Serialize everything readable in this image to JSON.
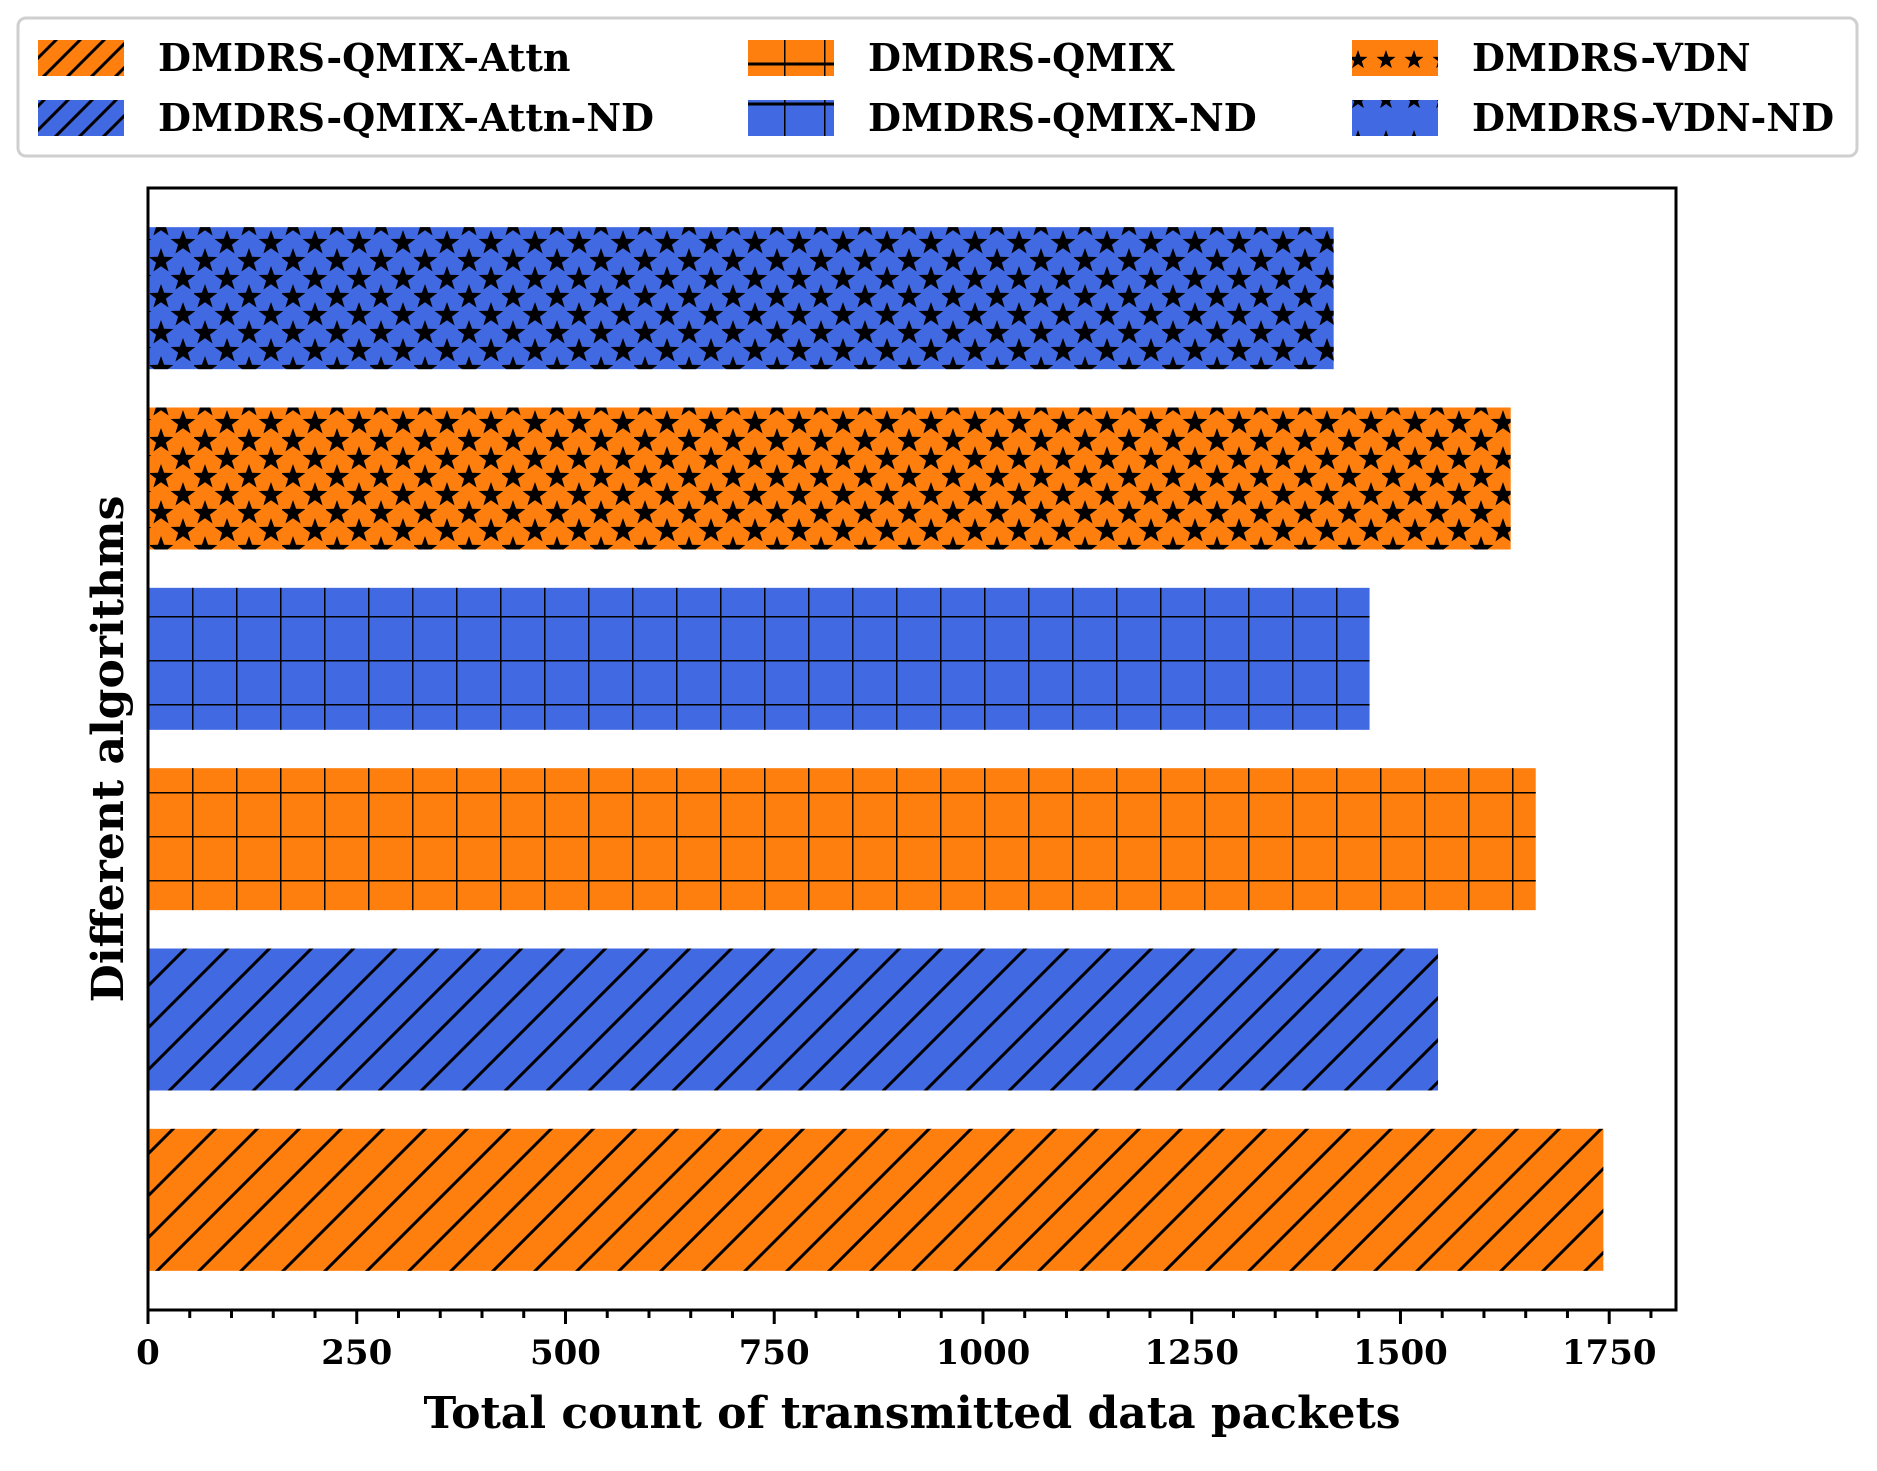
{
  "colors": {
    "orange": "#FF7F0E",
    "blue": "#4169E1",
    "hatch": "#000000"
  },
  "chart_data": {
    "type": "bar",
    "orientation": "horizontal",
    "title": "",
    "xlabel": "Total count of transmitted data packets",
    "ylabel": "Different algorithms",
    "xlim": [
      0,
      1830
    ],
    "xticks": [
      0,
      250,
      500,
      750,
      1000,
      1250,
      1500,
      1750
    ],
    "xtick_labels": [
      "0",
      "250",
      "500",
      "750",
      "1000",
      "1250",
      "1500",
      "1750"
    ],
    "minor_tick_step": 50,
    "grid": false,
    "legend_position": "top",
    "series": [
      {
        "name": "DMDRS-QMIX-Attn",
        "value": 1743,
        "color": "#FF7F0E",
        "hatch": "diagonal"
      },
      {
        "name": "DMDRS-QMIX-Attn-ND",
        "value": 1545,
        "color": "#4169E1",
        "hatch": "diagonal"
      },
      {
        "name": "DMDRS-QMIX",
        "value": 1662,
        "color": "#FF7F0E",
        "hatch": "grid"
      },
      {
        "name": "DMDRS-QMIX-ND",
        "value": 1463,
        "color": "#4169E1",
        "hatch": "grid"
      },
      {
        "name": "DMDRS-VDN",
        "value": 1632,
        "color": "#FF7F0E",
        "hatch": "stars"
      },
      {
        "name": "DMDRS-VDN-ND",
        "value": 1420,
        "color": "#4169E1",
        "hatch": "stars"
      }
    ]
  }
}
